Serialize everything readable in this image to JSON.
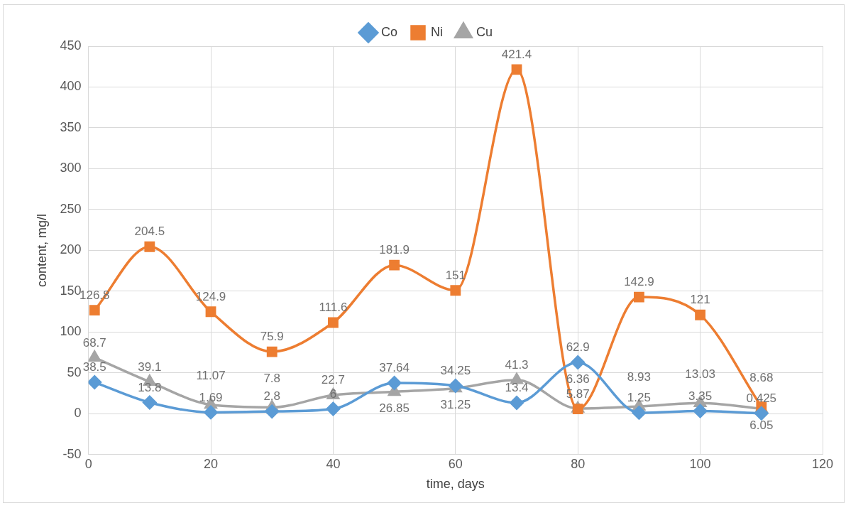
{
  "chart_data": {
    "type": "line",
    "xlabel": "time, days",
    "ylabel": "content, mg/l",
    "xlim": [
      0,
      120
    ],
    "xticks": [
      0,
      20,
      40,
      60,
      80,
      100,
      120
    ],
    "ylim": [
      -50,
      450
    ],
    "yticks": [
      -50,
      0,
      50,
      100,
      150,
      200,
      250,
      300,
      350,
      400,
      450
    ],
    "grid": true,
    "legend": "top",
    "data_labels": true,
    "x": [
      1,
      10,
      20,
      30,
      40,
      50,
      60,
      70,
      80,
      90,
      100,
      110
    ],
    "series": [
      {
        "name": "Co",
        "color": "#5b9bd5",
        "marker": "diamond",
        "values": [
          38.5,
          13.8,
          1.69,
          2.8,
          6,
          37.64,
          34.25,
          13.4,
          62.9,
          1.25,
          3.35,
          0.425
        ]
      },
      {
        "name": "Ni",
        "color": "#ed7d31",
        "marker": "square",
        "values": [
          126.8,
          204.5,
          124.9,
          75.9,
          111.6,
          181.9,
          151,
          421.4,
          5.87,
          142.9,
          121,
          8.68
        ]
      },
      {
        "name": "Cu",
        "color": "#a5a5a5",
        "marker": "triangle",
        "values": [
          68.7,
          39.1,
          11.07,
          7.8,
          22.7,
          26.85,
          31.25,
          41.3,
          6.36,
          8.93,
          13.03,
          6.05
        ]
      }
    ]
  }
}
